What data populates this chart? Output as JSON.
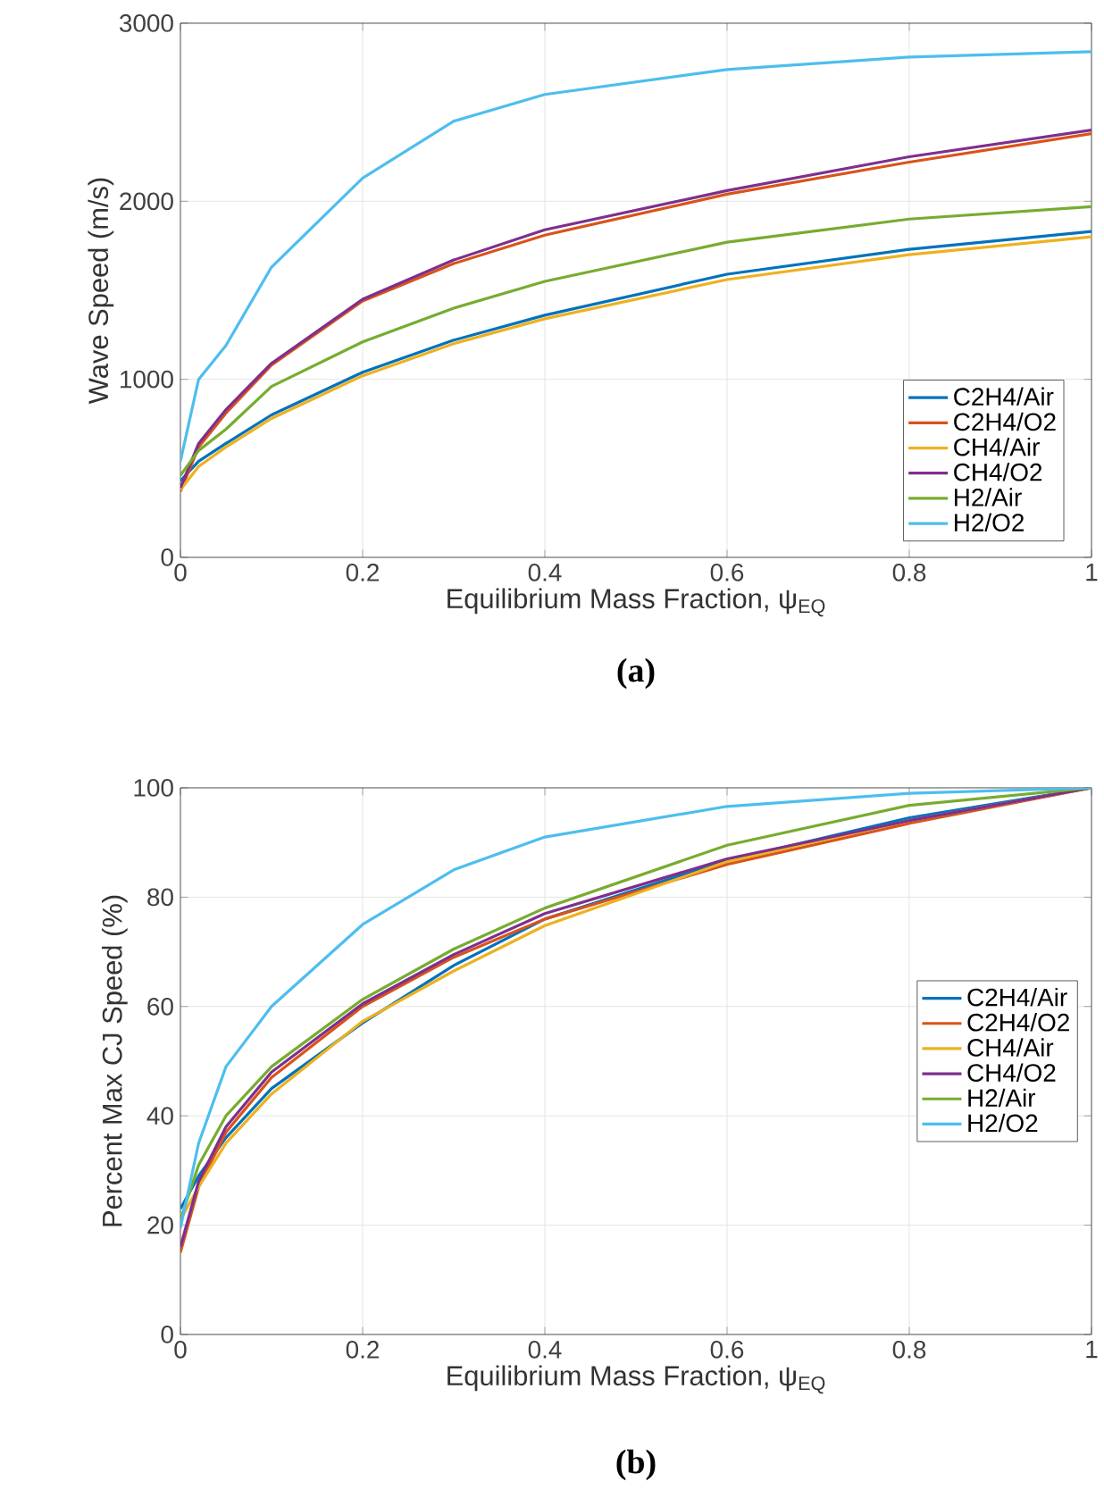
{
  "chart_data": [
    {
      "type": "line",
      "xlabel": "Equilibrium Mass Fraction, ψ$_{EQ}$",
      "ylabel": "Wave Speed (m/s)",
      "annotations": [
        "(a)"
      ],
      "x": [
        0,
        0.02,
        0.05,
        0.1,
        0.2,
        0.3,
        0.4,
        0.6,
        0.8,
        1
      ],
      "series": [
        {
          "name": "C2H4/Air",
          "color": "#0072bd",
          "values": [
            430,
            540,
            640,
            800,
            1040,
            1220,
            1360,
            1590,
            1730,
            1830
          ]
        },
        {
          "name": "C2H4/O2",
          "color": "#d95319",
          "values": [
            370,
            620,
            810,
            1080,
            1440,
            1650,
            1810,
            2040,
            2220,
            2380
          ]
        },
        {
          "name": "CH4/Air",
          "color": "#edb120",
          "values": [
            380,
            510,
            620,
            780,
            1020,
            1200,
            1340,
            1560,
            1700,
            1800
          ]
        },
        {
          "name": "CH4/O2",
          "color": "#7e2f8e",
          "values": [
            390,
            640,
            830,
            1090,
            1450,
            1670,
            1840,
            2060,
            2250,
            2400
          ]
        },
        {
          "name": "H2/Air",
          "color": "#77ac30",
          "values": [
            460,
            600,
            720,
            960,
            1210,
            1400,
            1550,
            1770,
            1900,
            1970
          ]
        },
        {
          "name": "H2/O2",
          "color": "#4dbeee",
          "values": [
            540,
            1000,
            1190,
            1630,
            2130,
            2450,
            2600,
            2740,
            2810,
            2840
          ]
        }
      ],
      "xlim": [
        0,
        1
      ],
      "ylim": [
        0,
        3000
      ],
      "xticks": [
        0,
        0.2,
        0.4,
        0.6,
        0.8,
        1
      ],
      "yticks": [
        0,
        1000,
        2000,
        3000
      ],
      "grid": true,
      "legend": "bottom right"
    },
    {
      "type": "line",
      "xlabel": "Equilibrium Mass Fraction, ψ$_{EQ}$",
      "ylabel": "Percent Max CJ Speed (%)",
      "annotations": [
        "(b)"
      ],
      "x": [
        0,
        0.02,
        0.05,
        0.1,
        0.2,
        0.3,
        0.4,
        0.6,
        0.8,
        1
      ],
      "series": [
        {
          "name": "C2H4/Air",
          "color": "#0072bd",
          "values": [
            23,
            29,
            36,
            45,
            57,
            67.5,
            76,
            86.7,
            94.5,
            100
          ]
        },
        {
          "name": "C2H4/O2",
          "color": "#d95319",
          "values": [
            15,
            27,
            37,
            47,
            60,
            69,
            76,
            86,
            93.5,
            100
          ]
        },
        {
          "name": "CH4/Air",
          "color": "#edb120",
          "values": [
            21,
            27,
            35,
            44,
            57.3,
            66.5,
            74.8,
            86.5,
            94,
            100
          ]
        },
        {
          "name": "CH4/O2",
          "color": "#7e2f8e",
          "values": [
            16,
            28,
            38,
            48,
            60.5,
            69.5,
            77,
            87,
            94,
            100
          ]
        },
        {
          "name": "H2/Air",
          "color": "#77ac30",
          "values": [
            21,
            31,
            40,
            49,
            61.3,
            70.5,
            78,
            89.5,
            96.8,
            100
          ]
        },
        {
          "name": "H2/O2",
          "color": "#4dbeee",
          "values": [
            19.5,
            35,
            49,
            60,
            75,
            85,
            91,
            96.6,
            99,
            100
          ]
        }
      ],
      "xlim": [
        0,
        1
      ],
      "ylim": [
        0,
        100
      ],
      "xticks": [
        0,
        0.2,
        0.4,
        0.6,
        0.8,
        1
      ],
      "yticks": [
        0,
        20,
        40,
        60,
        80,
        100
      ],
      "grid": true,
      "legend": "right"
    }
  ]
}
